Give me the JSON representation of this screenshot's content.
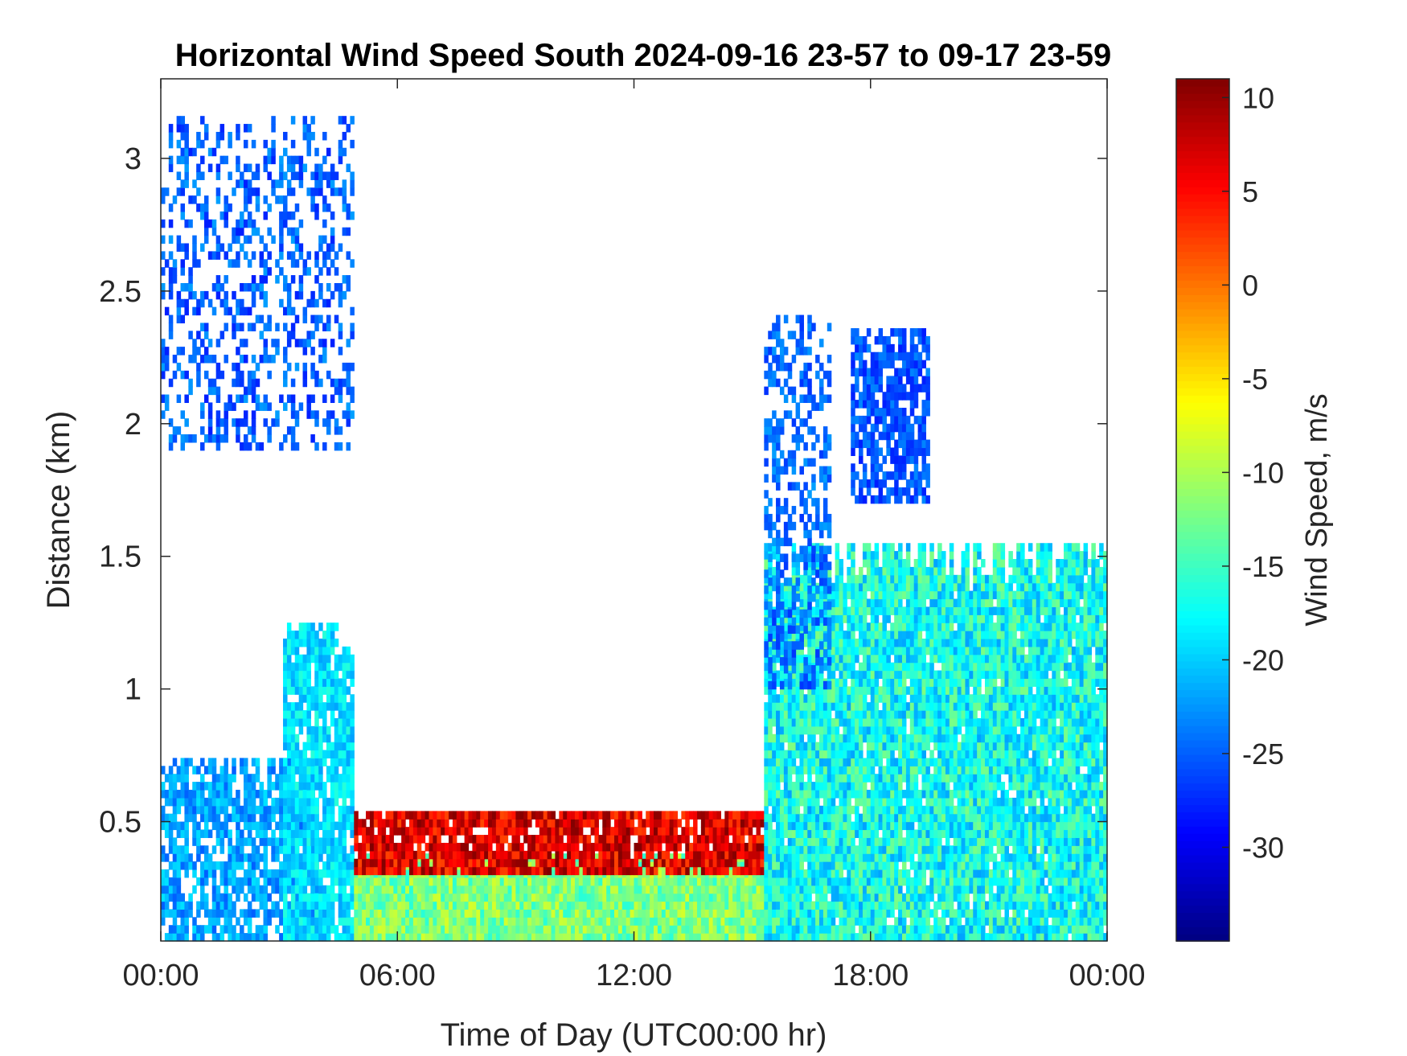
{
  "chart_data": {
    "type": "heatmap",
    "title": "Horizontal Wind Speed South 2024-09-16 23-57 to 09-17 23-59",
    "xlabel": "Time of Day (UTC00:00 hr)",
    "ylabel": "Distance (km)",
    "colorbar_label": "Wind Speed, m/s",
    "x_ticks": [
      {
        "value": 0,
        "label": "00:00"
      },
      {
        "value": 6,
        "label": "06:00"
      },
      {
        "value": 12,
        "label": "12:00"
      },
      {
        "value": 18,
        "label": "18:00"
      },
      {
        "value": 24,
        "label": "00:00"
      }
    ],
    "y_ticks": [
      0.5,
      1,
      1.5,
      2,
      2.5,
      3
    ],
    "y_tick_labels": [
      "0.5",
      "1",
      "1.5",
      "2",
      "2.5",
      "3"
    ],
    "xlim": [
      0,
      24
    ],
    "ylim": [
      0.05,
      3.3
    ],
    "clim": [
      -35,
      11
    ],
    "colorbar_ticks": [
      10,
      5,
      0,
      -5,
      -10,
      -15,
      -20,
      -25,
      -30
    ],
    "colorbar_tick_labels": [
      "10",
      "5",
      "0",
      "-5",
      "-10",
      "-15",
      "-20",
      "-25",
      "-30"
    ],
    "colormap": "jet",
    "grid": false,
    "time_bin_hours": 0.1,
    "range_bin_km": 0.03,
    "regions": [
      {
        "name": "early-morning-upper-layer",
        "t_start": 0.0,
        "t_end": 4.9,
        "z_bottom": 1.9,
        "z_top": 3.15,
        "speed_min": -28,
        "speed_max": -22,
        "density": 0.35
      },
      {
        "name": "early-morning-low-layer",
        "t_start": 0.0,
        "t_end": 4.0,
        "z_bottom": 0.05,
        "z_top": 0.75,
        "speed_min": -25,
        "speed_max": -19,
        "density": 0.75
      },
      {
        "name": "pre-dawn-bulge",
        "t_start": 3.1,
        "t_end": 4.9,
        "z_bottom": 0.05,
        "z_top": 1.25,
        "speed_min": -22,
        "speed_max": -16,
        "density": 0.85
      },
      {
        "name": "daytime-surface-layer",
        "t_start": 4.9,
        "t_end": 15.3,
        "z_bottom": 0.05,
        "z_top": 0.38,
        "speed_min": -16,
        "speed_max": -8,
        "density": 1.0
      },
      {
        "name": "daytime-jet-band",
        "t_start": 4.9,
        "t_end": 15.3,
        "z_bottom": 0.3,
        "z_top": 0.55,
        "speed_min": 2,
        "speed_max": 11,
        "density": 0.9
      },
      {
        "name": "evening-mixed-layer",
        "t_start": 15.3,
        "t_end": 24.0,
        "z_bottom": 0.05,
        "z_top": 1.55,
        "speed_min": -22,
        "speed_max": -12,
        "density": 0.95
      },
      {
        "name": "evening-cloud-layer",
        "t_start": 17.5,
        "t_end": 19.5,
        "z_bottom": 1.7,
        "z_top": 2.35,
        "speed_min": -28,
        "speed_max": -23,
        "density": 0.7
      },
      {
        "name": "late-afternoon-plumes",
        "t_start": 15.3,
        "t_end": 17.0,
        "z_bottom": 1.0,
        "z_top": 2.4,
        "speed_min": -27,
        "speed_max": -22,
        "density": 0.5
      }
    ]
  }
}
